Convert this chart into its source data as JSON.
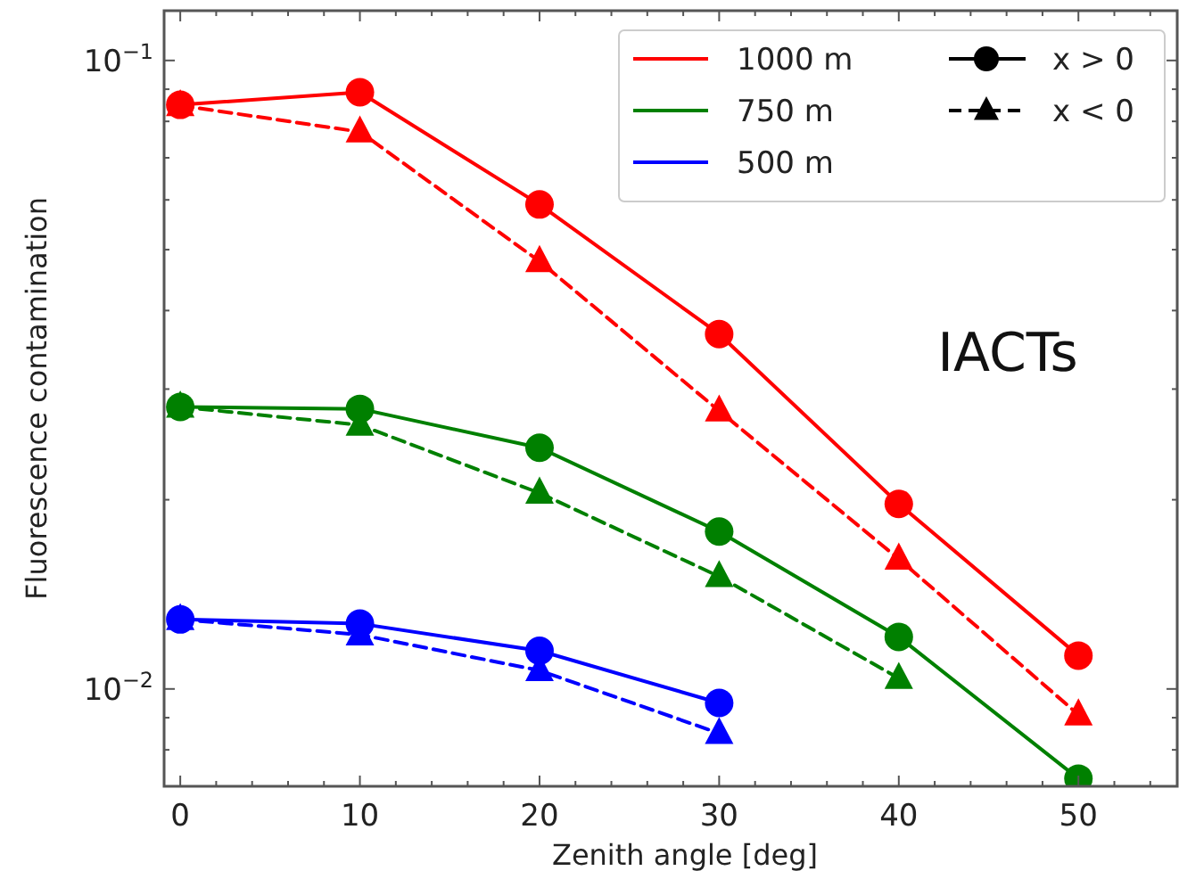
{
  "chart_data": {
    "type": "line",
    "xlabel": "Zenith angle [deg]",
    "ylabel": "Fluorescence contamination",
    "log": "y",
    "grid": false,
    "legend": "top right",
    "xlim": [
      -0.9,
      55.5
    ],
    "ylim": [
      0.007,
      0.12
    ],
    "xticks": [
      0,
      10,
      20,
      30,
      40,
      50,
      {
        "value": 2,
        "label": null
      },
      {
        "value": 4,
        "label": null
      },
      {
        "value": 6,
        "label": null
      },
      {
        "value": 8,
        "label": null
      },
      {
        "value": 12,
        "label": null
      },
      {
        "value": 14,
        "label": null
      },
      {
        "value": 16,
        "label": null
      },
      {
        "value": 18,
        "label": null
      },
      {
        "value": 22,
        "label": null
      },
      {
        "value": 24,
        "label": null
      },
      {
        "value": 26,
        "label": null
      },
      {
        "value": 28,
        "label": null
      },
      {
        "value": 32,
        "label": null
      },
      {
        "value": 34,
        "label": null
      },
      {
        "value": 36,
        "label": null
      },
      {
        "value": 38,
        "label": null
      },
      {
        "value": 42,
        "label": null
      },
      {
        "value": 44,
        "label": null
      },
      {
        "value": 46,
        "label": null
      },
      {
        "value": 48,
        "label": null
      },
      {
        "value": 52,
        "label": null
      },
      {
        "value": 54,
        "label": null
      }
    ],
    "yticks": [
      {
        "value": 0.01,
        "label": "10$^{−2}$"
      },
      {
        "value": 0.1,
        "label": "10$^{−1}$"
      },
      {
        "value": 0.008,
        "label": null
      },
      {
        "value": 0.009,
        "label": null
      },
      {
        "value": 0.02,
        "label": null
      },
      {
        "value": 0.03,
        "label": null
      },
      {
        "value": 0.04,
        "label": null
      },
      {
        "value": 0.05,
        "label": null
      },
      {
        "value": 0.06,
        "label": null
      },
      {
        "value": 0.07,
        "label": null
      },
      {
        "value": 0.08,
        "label": null
      },
      {
        "value": 0.09,
        "label": null
      }
    ],
    "annotations": [
      "IACTs",
      "x > 0",
      "x < 0"
    ],
    "series": [
      {
        "name": "1000 m",
        "color": "#ff0000",
        "marker": "circle",
        "line_style": "solid",
        "x": [
          0,
          10,
          20,
          30,
          40,
          50
        ],
        "values": [
          0.085,
          0.089,
          0.059,
          0.0367,
          0.0197,
          0.0113
        ]
      },
      {
        "name": "750 m",
        "color": "#008000",
        "marker": "circle",
        "line_style": "solid",
        "x": [
          0,
          10,
          20,
          30,
          40,
          50
        ],
        "values": [
          0.0281,
          0.0279,
          0.0242,
          0.0178,
          0.0121,
          0.0072
        ]
      },
      {
        "name": "500 m",
        "color": "#0000ff",
        "marker": "circle",
        "line_style": "solid",
        "x": [
          0,
          10,
          20,
          30
        ],
        "values": [
          0.0129,
          0.0127,
          0.0115,
          0.0095
        ]
      },
      {
        "color": "#ff0000",
        "marker": "triangle",
        "line_style": "dashed",
        "x": [
          0,
          10,
          20,
          30,
          40,
          50
        ],
        "values": [
          0.0848,
          0.077,
          0.0479,
          0.0277,
          0.0161,
          0.0091
        ]
      },
      {
        "color": "#008000",
        "marker": "triangle",
        "line_style": "dashed",
        "x": [
          0,
          10,
          20,
          30,
          40
        ],
        "values": [
          0.0281,
          0.0263,
          0.0205,
          0.0151,
          0.0104
        ]
      },
      {
        "color": "#0000ff",
        "marker": "triangle",
        "line_style": "dashed",
        "x": [
          0,
          10,
          20,
          30
        ],
        "values": [
          0.0129,
          0.0122,
          0.0107,
          0.0085
        ]
      }
    ]
  }
}
